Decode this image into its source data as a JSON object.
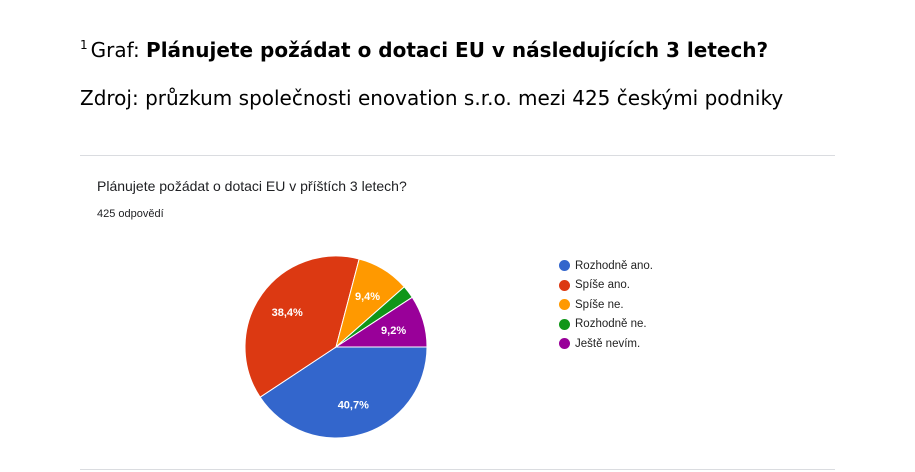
{
  "header": {
    "footnote_mark": "1",
    "prefix": "Graf:",
    "title": "Plánujete požádat o dotaci EU v následujících 3 letech?",
    "source": "Zdroj: průzkum společnosti enovation s.r.o. mezi 425 českými podniky"
  },
  "card": {
    "question": "Plánujete požádat o dotaci EU v příštích 3 letech?",
    "responses": "425 odpovědí"
  },
  "chart_data": {
    "type": "pie",
    "categories": [
      "Rozhodně ano.",
      "Spíše ano.",
      "Spíše ne.",
      "Rozhodně ne.",
      "Ještě nevím."
    ],
    "values": [
      40.7,
      38.4,
      9.4,
      2.3,
      9.2
    ],
    "labels": [
      "40,7%",
      "38,4%",
      "9,4%",
      "",
      "9,2%"
    ],
    "colors": [
      "#3366cc",
      "#dc3912",
      "#ff9900",
      "#109618",
      "#990099"
    ],
    "legend_position": "right"
  }
}
